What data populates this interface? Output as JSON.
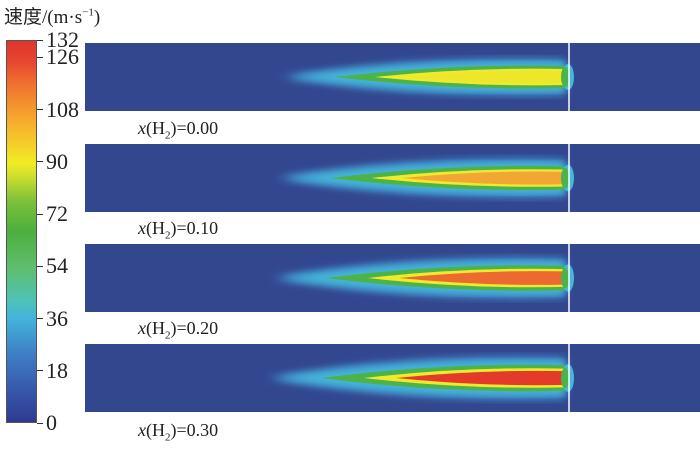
{
  "legend": {
    "title_text": "速度/(m·s",
    "title_sup": "−1",
    "title_close": ")",
    "ticks": [
      "132",
      "126",
      "108",
      "90",
      "72",
      "54",
      "36",
      "18",
      "0"
    ],
    "tick_values": [
      132,
      126,
      108,
      90,
      72,
      54,
      36,
      18,
      0
    ],
    "range": [
      0,
      132
    ]
  },
  "panels": [
    {
      "caption_var": "x",
      "caption_sub": "2",
      "caption_value": "=0.00",
      "core_color": "#ede62a",
      "peak": 95
    },
    {
      "caption_var": "x",
      "caption_sub": "2",
      "caption_value": "=0.10",
      "core_color": "#f2a734",
      "peak": 105
    },
    {
      "caption_var": "x",
      "caption_sub": "2",
      "caption_value": "=0.20",
      "core_color": "#ec6a30",
      "peak": 118
    },
    {
      "caption_var": "x",
      "caption_sub": "2",
      "caption_value": "=0.30",
      "core_color": "#e43a2b",
      "peak": 130
    }
  ],
  "colors": {
    "background": "#33478f",
    "outer_halo": "#45b7d8",
    "mid_layer": "#4cb24a",
    "inner_layer": "#f0ea2c"
  }
}
